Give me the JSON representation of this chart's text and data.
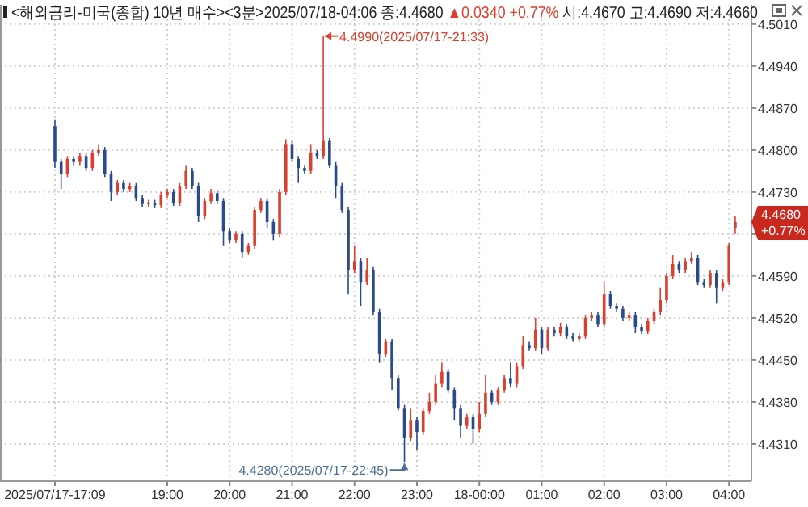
{
  "chart_data": {
    "type": "candlestick",
    "title": "<해외금리-미국(종합) 10년 매수><3분>2025/07/18-04:06 종:4.4680",
    "subtitle": "▲0.0340 +0.77%",
    "annotations": [
      "시:4.4670 고:4.4690 저:4.4660",
      "4.4990(2025/07/17-21:33)",
      "4.4280(2025/07/17-22:45)",
      "4.4680 +0.77%"
    ],
    "categories": [
      "2025/07/17-17:09",
      null,
      null,
      null,
      null,
      null,
      null,
      null,
      null,
      null,
      null,
      null,
      null,
      null,
      null,
      null,
      null,
      null,
      "19:00",
      null,
      null,
      null,
      null,
      null,
      null,
      null,
      null,
      null,
      "20:00",
      null,
      null,
      null,
      null,
      null,
      null,
      null,
      null,
      null,
      "21:00",
      null,
      null,
      null,
      null,
      null,
      null,
      null,
      null,
      null,
      "22:00",
      null,
      null,
      null,
      null,
      null,
      null,
      null,
      null,
      null,
      "23:00",
      null,
      null,
      null,
      null,
      null,
      null,
      null,
      null,
      null,
      "18-00:00",
      null,
      null,
      null,
      null,
      null,
      null,
      null,
      null,
      null,
      "01:00",
      null,
      null,
      null,
      null,
      null,
      null,
      null,
      null,
      null,
      "02:00",
      null,
      null,
      null,
      null,
      null,
      null,
      null,
      null,
      null,
      "03:00",
      null,
      null,
      null,
      null,
      null,
      null,
      null,
      null,
      null,
      "04:00",
      null
    ],
    "ohlc": [
      [
        4.484,
        4.485,
        4.477,
        4.478
      ],
      [
        4.478,
        4.4785,
        4.4735,
        4.476
      ],
      [
        4.476,
        4.479,
        4.4755,
        4.4785
      ],
      [
        4.4785,
        4.479,
        4.4775,
        4.478
      ],
      [
        4.478,
        4.4795,
        4.4775,
        4.479
      ],
      [
        4.479,
        4.4795,
        4.4765,
        4.477
      ],
      [
        4.477,
        4.48,
        4.4765,
        4.4795
      ],
      [
        4.4795,
        4.481,
        4.479,
        4.48
      ],
      [
        4.48,
        4.4805,
        4.4755,
        4.476
      ],
      [
        4.476,
        4.4765,
        4.4715,
        4.473
      ],
      [
        4.473,
        4.475,
        4.4725,
        4.4745
      ],
      [
        4.4745,
        4.475,
        4.473,
        4.4735
      ],
      [
        4.4735,
        4.4745,
        4.473,
        4.474
      ],
      [
        4.474,
        4.4745,
        4.4715,
        4.472
      ],
      [
        4.472,
        4.4725,
        4.4705,
        4.471
      ],
      [
        4.471,
        4.4717,
        4.4705,
        4.4712
      ],
      [
        4.4712,
        4.4717,
        4.4703,
        4.4708
      ],
      [
        4.4708,
        4.473,
        4.4703,
        4.4725
      ],
      [
        4.4725,
        4.4735,
        4.472,
        4.473
      ],
      [
        4.473,
        4.4735,
        4.4707,
        4.4712
      ],
      [
        4.4712,
        4.4745,
        4.4707,
        4.474
      ],
      [
        4.474,
        4.4775,
        4.4735,
        4.4765
      ],
      [
        4.4765,
        4.477,
        4.4735,
        4.474
      ],
      [
        4.474,
        4.4745,
        4.468,
        4.469
      ],
      [
        4.469,
        4.472,
        4.4685,
        4.4715
      ],
      [
        4.4715,
        4.4735,
        4.471,
        4.4728
      ],
      [
        4.4728,
        4.4733,
        4.471,
        4.4715
      ],
      [
        4.4715,
        4.472,
        4.464,
        4.4665
      ],
      [
        4.4665,
        4.467,
        4.4645,
        4.465
      ],
      [
        4.465,
        4.4665,
        4.4645,
        4.466
      ],
      [
        4.466,
        4.4665,
        4.462,
        4.463
      ],
      [
        4.463,
        4.4645,
        4.4625,
        4.464
      ],
      [
        4.464,
        4.4705,
        4.4635,
        4.47
      ],
      [
        4.47,
        4.472,
        4.4695,
        4.4715
      ],
      [
        4.4715,
        4.472,
        4.467,
        4.468
      ],
      [
        4.468,
        4.4685,
        4.465,
        4.466
      ],
      [
        4.466,
        4.4735,
        4.4655,
        4.473
      ],
      [
        4.473,
        4.4818,
        4.4725,
        4.481
      ],
      [
        4.481,
        4.4815,
        4.478,
        4.4785
      ],
      [
        4.4785,
        4.479,
        4.4745,
        4.477
      ],
      [
        4.477,
        4.4775,
        4.476,
        4.4765
      ],
      [
        4.4765,
        4.481,
        4.476,
        4.4795
      ],
      [
        4.4795,
        4.48,
        4.4785,
        4.479
      ],
      [
        4.479,
        4.499,
        4.4785,
        4.4815
      ],
      [
        4.4815,
        4.482,
        4.477,
        4.4775
      ],
      [
        4.4775,
        4.478,
        4.472,
        4.474
      ],
      [
        4.474,
        4.4745,
        4.4695,
        4.47
      ],
      [
        4.47,
        4.4705,
        4.456,
        4.46
      ],
      [
        4.46,
        4.464,
        4.4595,
        4.4615
      ],
      [
        4.4615,
        4.462,
        4.454,
        4.458
      ],
      [
        4.458,
        4.462,
        4.4575,
        4.46
      ],
      [
        4.46,
        4.4605,
        4.4525,
        4.453
      ],
      [
        4.453,
        4.4535,
        4.4445,
        4.446
      ],
      [
        4.446,
        4.4485,
        4.4455,
        4.448
      ],
      [
        4.448,
        4.4485,
        4.44,
        4.442
      ],
      [
        4.442,
        4.4425,
        4.4365,
        4.437
      ],
      [
        4.437,
        4.4375,
        4.428,
        4.432
      ],
      [
        4.432,
        4.437,
        4.4315,
        4.435
      ],
      [
        4.435,
        4.4355,
        4.43,
        4.433
      ],
      [
        4.433,
        4.437,
        4.4325,
        4.4365
      ],
      [
        4.4365,
        4.4395,
        4.436,
        4.438
      ],
      [
        4.438,
        4.4425,
        4.4375,
        4.441
      ],
      [
        4.441,
        4.4445,
        4.4405,
        4.443
      ],
      [
        4.443,
        4.4435,
        4.4395,
        4.44
      ],
      [
        4.44,
        4.4405,
        4.435,
        4.437
      ],
      [
        4.437,
        4.4375,
        4.432,
        4.434
      ],
      [
        4.434,
        4.436,
        4.4335,
        4.4355
      ],
      [
        4.4355,
        4.436,
        4.431,
        4.4335
      ],
      [
        4.4335,
        4.438,
        4.433,
        4.436
      ],
      [
        4.436,
        4.4425,
        4.4355,
        4.4395
      ],
      [
        4.4395,
        4.44,
        4.4375,
        4.438
      ],
      [
        4.438,
        4.4405,
        4.4375,
        4.44
      ],
      [
        4.44,
        4.4425,
        4.4395,
        4.442
      ],
      [
        4.442,
        4.4445,
        4.4405,
        4.441
      ],
      [
        4.441,
        4.4445,
        4.4405,
        4.444
      ],
      [
        4.444,
        4.449,
        4.4435,
        4.4475
      ],
      [
        4.4475,
        4.448,
        4.4465,
        4.447
      ],
      [
        4.447,
        4.452,
        4.4465,
        4.45
      ],
      [
        4.45,
        4.4505,
        4.446,
        4.447
      ],
      [
        4.447,
        4.4505,
        4.4465,
        4.45
      ],
      [
        4.45,
        4.4505,
        4.449,
        4.4495
      ],
      [
        4.4495,
        4.4512,
        4.449,
        4.4505
      ],
      [
        4.4505,
        4.451,
        4.4485,
        4.449
      ],
      [
        4.449,
        4.4495,
        4.448,
        4.4485
      ],
      [
        4.4485,
        4.4495,
        4.448,
        4.449
      ],
      [
        4.449,
        4.4525,
        4.4485,
        4.452
      ],
      [
        4.452,
        4.453,
        4.4515,
        4.4525
      ],
      [
        4.4525,
        4.453,
        4.4505,
        4.451
      ],
      [
        4.451,
        4.458,
        4.4505,
        4.456
      ],
      [
        4.456,
        4.4565,
        4.4535,
        4.454
      ],
      [
        4.454,
        4.4545,
        4.453,
        4.4535
      ],
      [
        4.4535,
        4.454,
        4.4515,
        4.452
      ],
      [
        4.452,
        4.453,
        4.4515,
        4.4525
      ],
      [
        4.4525,
        4.453,
        4.4495,
        4.4505
      ],
      [
        4.4505,
        4.451,
        4.4493,
        4.4498
      ],
      [
        4.4498,
        4.452,
        4.4493,
        4.4515
      ],
      [
        4.4515,
        4.4535,
        4.451,
        4.453
      ],
      [
        4.453,
        4.457,
        4.4525,
        4.455
      ],
      [
        4.455,
        4.4595,
        4.4545,
        4.459
      ],
      [
        4.459,
        4.4625,
        4.4585,
        4.461
      ],
      [
        4.461,
        4.4615,
        4.4595,
        4.46
      ],
      [
        4.46,
        4.462,
        4.4595,
        4.4615
      ],
      [
        4.4615,
        4.463,
        4.461,
        4.462
      ],
      [
        4.462,
        4.4625,
        4.4575,
        4.458
      ],
      [
        4.458,
        4.4585,
        4.457,
        4.4575
      ],
      [
        4.4575,
        4.46,
        4.457,
        4.4595
      ],
      [
        4.4595,
        4.46,
        4.4545,
        4.457
      ],
      [
        4.457,
        4.4585,
        4.4565,
        4.458
      ],
      [
        4.458,
        4.4645,
        4.4575,
        4.464
      ],
      [
        4.467,
        4.469,
        4.466,
        4.468
      ]
    ],
    "ylim": [
      4.4248,
      4.5042
    ],
    "yticks": [
      {
        "value": 4.431,
        "label": "4.4310"
      },
      {
        "value": 4.438,
        "label": "4.4380"
      },
      {
        "value": 4.445,
        "label": "4.4450"
      },
      {
        "value": 4.452,
        "label": "4.4520"
      },
      {
        "value": 4.459,
        "label": "4.4590"
      },
      {
        "value": 4.466,
        "label": null
      },
      {
        "value": 4.473,
        "label": "4.4730"
      },
      {
        "value": 4.48,
        "label": "4.4800"
      },
      {
        "value": 4.487,
        "label": "4.4870"
      },
      {
        "value": 4.494,
        "label": "4.4940"
      },
      {
        "value": 4.501,
        "label": "4.5010"
      }
    ],
    "grid": true
  }
}
